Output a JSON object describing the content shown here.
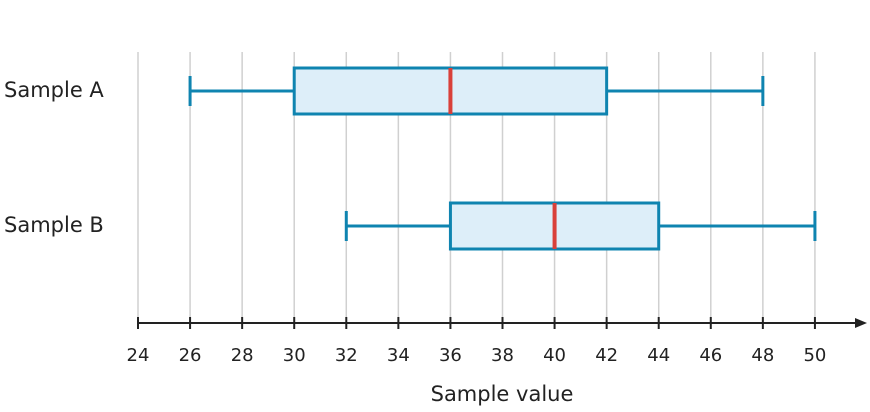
{
  "chart_data": {
    "type": "boxplot",
    "orientation": "horizontal",
    "xlabel": "Sample value",
    "categories": [
      "Sample A",
      "Sample B"
    ],
    "boxes": [
      {
        "min": 26,
        "q1": 30,
        "median": 36,
        "q3": 42,
        "max": 48
      },
      {
        "min": 32,
        "q1": 36,
        "median": 40,
        "q3": 44,
        "max": 50
      }
    ],
    "box_color": "#0f84b0",
    "box_fill": "#ddeef9",
    "median_color": "#d9403a",
    "xlim": [
      24,
      52
    ],
    "xticks": [
      24,
      26,
      28,
      30,
      32,
      34,
      36,
      38,
      40,
      42,
      44,
      46,
      48,
      50
    ],
    "grid": true
  }
}
